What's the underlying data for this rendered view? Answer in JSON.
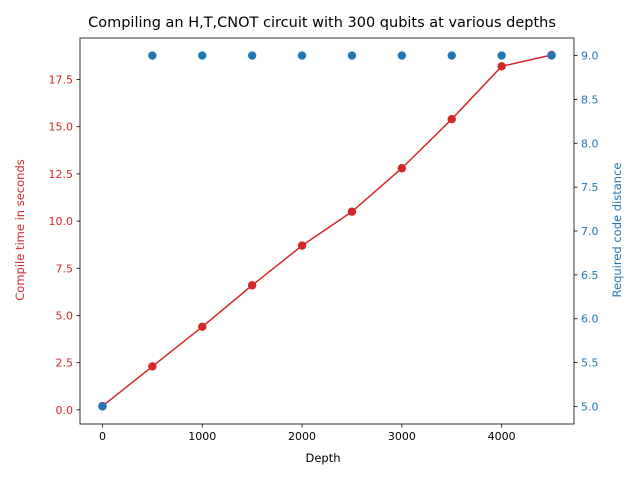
{
  "chart_data": {
    "type": "line",
    "title": "Compiling an H,T,CNOT circuit with 300 qubits at various depths",
    "xlabel": "Depth",
    "x": [
      0,
      500,
      1000,
      1500,
      2000,
      2500,
      3000,
      3500,
      4000,
      4500
    ],
    "xlim": [
      -225,
      4725
    ],
    "xticks": [
      "0",
      "1000",
      "2000",
      "3000",
      "4000"
    ],
    "y_left": {
      "label": "Compile time in seconds",
      "color": "#d62728",
      "ylim": [
        -0.75,
        19.7
      ],
      "ticks": [
        "0.0",
        "2.5",
        "5.0",
        "7.5",
        "10.0",
        "12.5",
        "15.0",
        "17.5"
      ]
    },
    "y_right": {
      "label": "Required code distance",
      "color": "#1f77b4",
      "ylim": [
        4.8,
        9.2
      ],
      "ticks": [
        "5.0",
        "5.5",
        "6.0",
        "6.5",
        "7.0",
        "7.5",
        "8.0",
        "8.5",
        "9.0"
      ]
    },
    "series": [
      {
        "axis": "left",
        "style": "line-marker",
        "color": "#d62728",
        "values": [
          0.2,
          2.3,
          4.4,
          6.6,
          8.7,
          10.5,
          12.8,
          15.4,
          18.2,
          18.8
        ]
      },
      {
        "axis": "right",
        "style": "marker",
        "color": "#1f77b4",
        "values": [
          5.0,
          9.0,
          9.0,
          9.0,
          9.0,
          9.0,
          9.0,
          9.0,
          9.0,
          9.0
        ]
      }
    ],
    "grid": false
  }
}
